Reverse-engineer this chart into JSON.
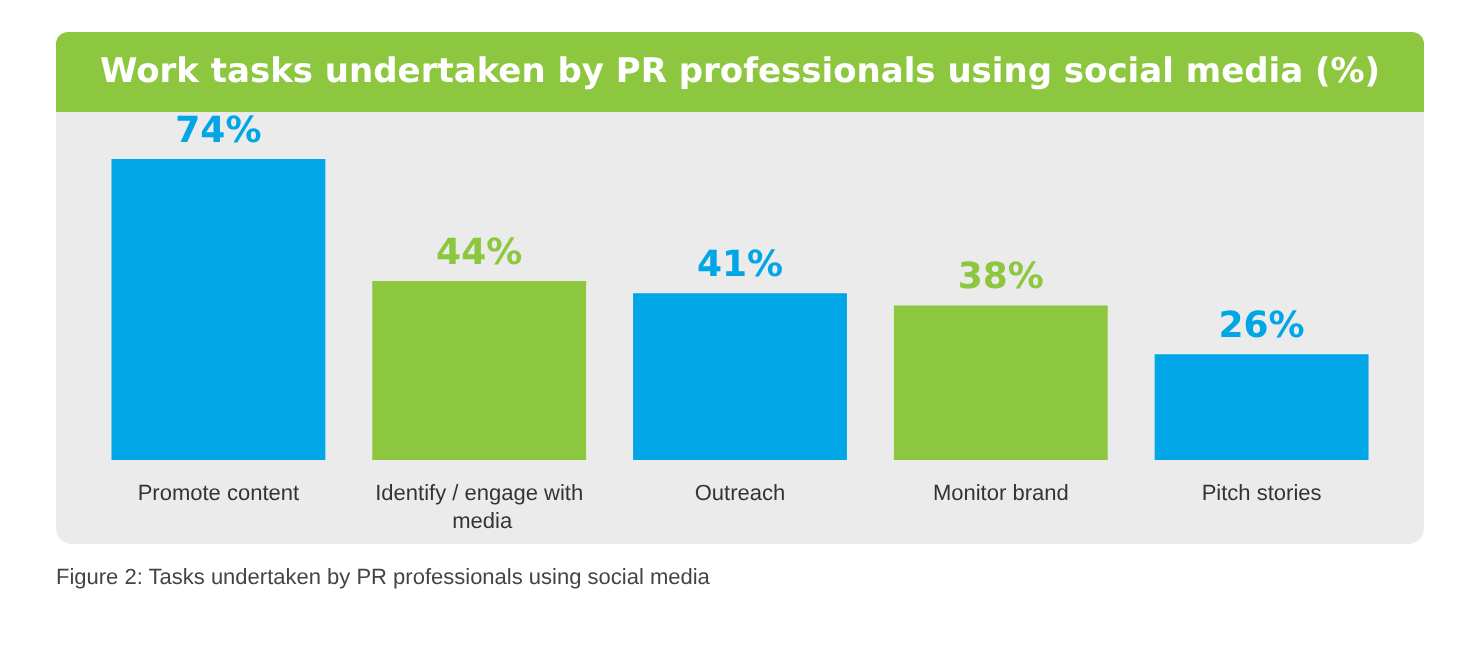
{
  "chart_data": {
    "type": "bar",
    "title": "Work tasks undertaken by PR professionals using social media (%)",
    "categories": [
      "Promote content",
      "Identify / engage with media",
      "Outreach",
      "Monitor brand",
      "Pitch stories"
    ],
    "values": [
      74,
      44,
      41,
      38,
      26
    ],
    "colors": [
      "#00a6e6",
      "#8dc63f",
      "#00a6e6",
      "#8dc63f",
      "#00a6e6"
    ],
    "value_labels": [
      "74%",
      "44%",
      "41%",
      "38%",
      "26%"
    ],
    "annotations": [
      "Figure 2: Tasks undertaken by PR professionals using social media"
    ]
  }
}
